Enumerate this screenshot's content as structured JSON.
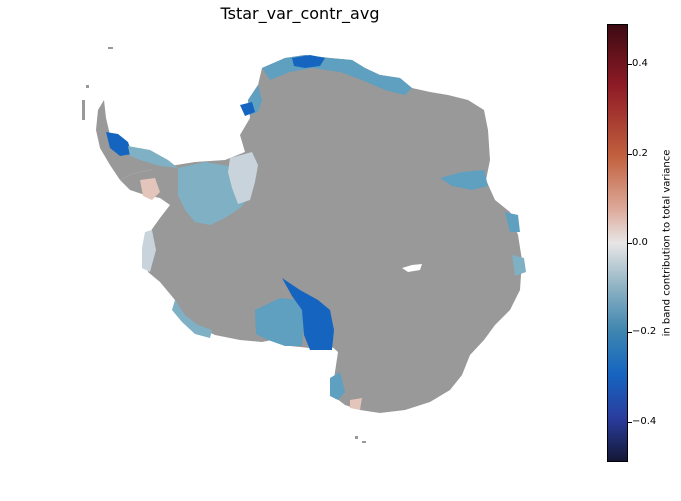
{
  "title": "Tstar_var_contr_avg",
  "colorbar": {
    "label": "in band contribution to total variance",
    "range": [
      -0.5,
      0.5
    ],
    "ticks": [
      "0.4",
      "0.2",
      "0.0",
      "−0.2",
      "−0.4"
    ],
    "tick_values": [
      0.4,
      0.2,
      0.0,
      -0.2,
      -0.4
    ],
    "colormap_stops": [
      "#3d0a12",
      "#8e1b26",
      "#c1603d",
      "#dca898",
      "#e8e6e6",
      "#8fb3c4",
      "#3f86b0",
      "#1565c0",
      "#2a3d9f",
      "#141835"
    ]
  },
  "colors": {
    "land_no_data": "#999999",
    "strong_negative": "#1565c0",
    "moderate_negative": "#5f9fc0",
    "weak_negative": "#7fb0c4",
    "near_zero": "#c8d3db",
    "slight_positive": "#e3c5bb"
  }
}
